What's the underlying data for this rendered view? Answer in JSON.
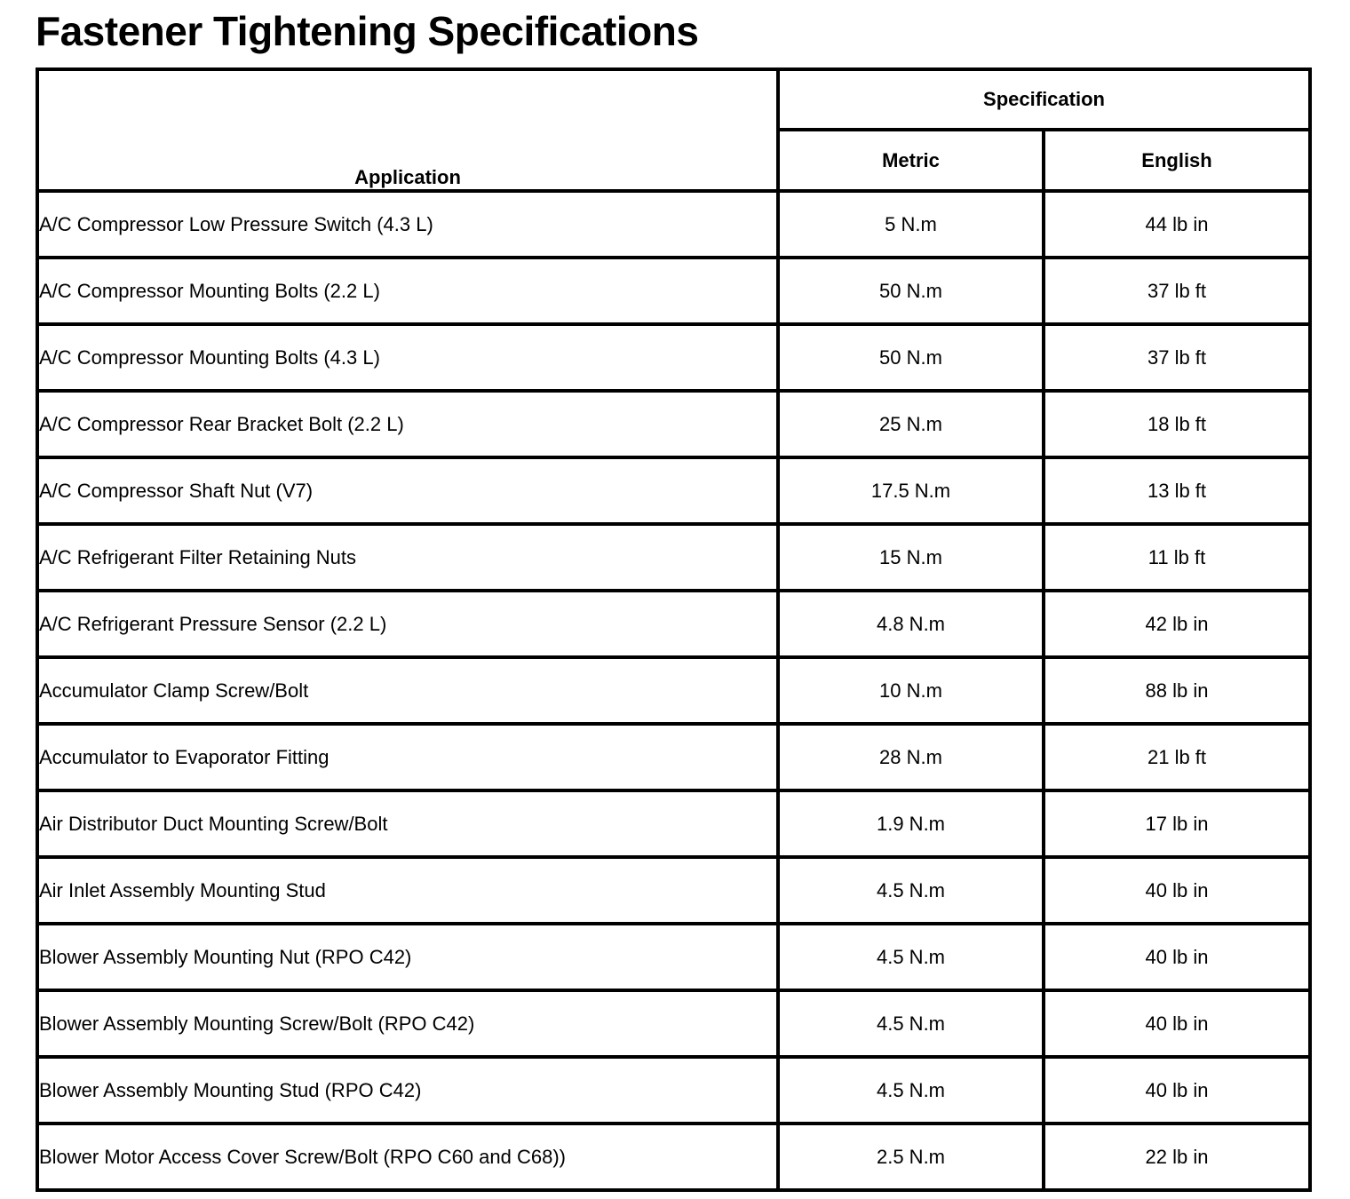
{
  "page_title": "Fastener Tightening Specifications",
  "table": {
    "headers": {
      "application": "Application",
      "specification": "Specification",
      "metric": "Metric",
      "english": "English"
    },
    "rows": [
      {
        "application": "A/C Compressor Low Pressure Switch (4.3 L)",
        "metric": "5 N.m",
        "english": "44 lb in"
      },
      {
        "application": "A/C Compressor Mounting Bolts (2.2 L)",
        "metric": "50 N.m",
        "english": "37 lb ft"
      },
      {
        "application": "A/C Compressor Mounting Bolts (4.3 L)",
        "metric": "50 N.m",
        "english": "37 lb ft"
      },
      {
        "application": "A/C Compressor Rear Bracket Bolt (2.2 L)",
        "metric": "25 N.m",
        "english": "18 lb ft"
      },
      {
        "application": "A/C Compressor Shaft Nut (V7)",
        "metric": "17.5 N.m",
        "english": "13 lb ft"
      },
      {
        "application": "A/C Refrigerant Filter Retaining Nuts",
        "metric": "15 N.m",
        "english": "11 lb ft"
      },
      {
        "application": "A/C Refrigerant Pressure Sensor (2.2 L)",
        "metric": "4.8 N.m",
        "english": "42 lb in"
      },
      {
        "application": "Accumulator Clamp Screw/Bolt",
        "metric": "10 N.m",
        "english": "88 lb in"
      },
      {
        "application": "Accumulator to Evaporator Fitting",
        "metric": "28 N.m",
        "english": "21 lb ft"
      },
      {
        "application": "Air Distributor Duct Mounting Screw/Bolt",
        "metric": "1.9 N.m",
        "english": "17 lb in"
      },
      {
        "application": "Air Inlet Assembly Mounting Stud",
        "metric": "4.5 N.m",
        "english": "40 lb in"
      },
      {
        "application": "Blower Assembly Mounting Nut (RPO C42)",
        "metric": "4.5 N.m",
        "english": "40 lb in"
      },
      {
        "application": "Blower Assembly Mounting Screw/Bolt (RPO C42)",
        "metric": "4.5 N.m",
        "english": "40 lb in"
      },
      {
        "application": "Blower Assembly Mounting Stud (RPO C42)",
        "metric": "4.5 N.m",
        "english": "40 lb in"
      },
      {
        "application": "Blower Motor Access Cover Screw/Bolt (RPO C60 and C68))",
        "metric": "2.5 N.m",
        "english": "22 lb in"
      }
    ],
    "colors": {
      "border": "#000000",
      "background": "#ffffff",
      "text": "#000000"
    }
  }
}
